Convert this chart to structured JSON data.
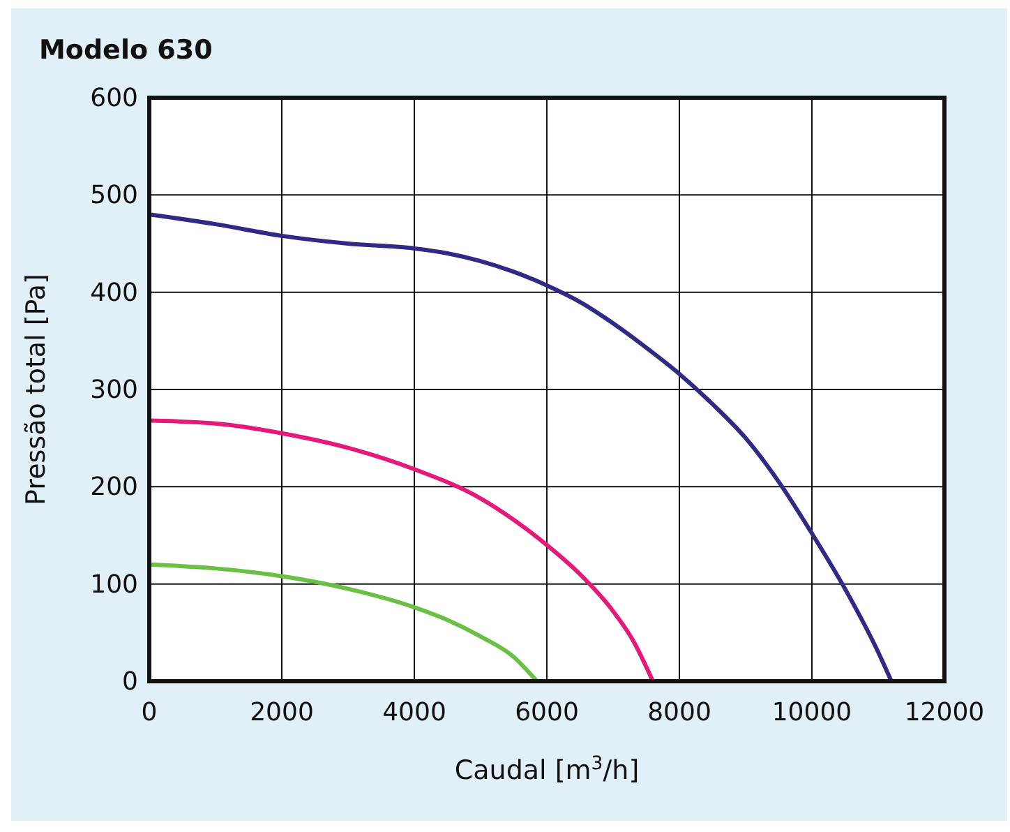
{
  "chart_data": {
    "type": "line",
    "title": "Modelo 630",
    "xlabel": "Caudal [m$^{3}$/h]",
    "ylabel": "Pressão total [Pa]",
    "xlim": [
      0,
      12000
    ],
    "ylim": [
      0,
      600
    ],
    "xticks": [
      0,
      2000,
      4000,
      6000,
      8000,
      10000,
      12000
    ],
    "yticks": [
      0,
      100,
      200,
      300,
      400,
      500,
      600
    ],
    "grid": true,
    "series": [
      {
        "color": "#2e2a86",
        "x": [
          0,
          1000,
          2000,
          3000,
          4000,
          4500,
          5000,
          5500,
          6000,
          6500,
          7000,
          7500,
          8000,
          8500,
          9000,
          9500,
          10000,
          10500,
          11000,
          11200
        ],
        "values": [
          480,
          470,
          458,
          450,
          445,
          440,
          432,
          421,
          407,
          390,
          368,
          343,
          316,
          285,
          250,
          205,
          152,
          95,
          30,
          0
        ]
      },
      {
        "color": "#e5197a",
        "x": [
          0,
          1000,
          2000,
          3000,
          4000,
          5000,
          5500,
          6000,
          6500,
          7000,
          7300,
          7600
        ],
        "values": [
          268,
          265,
          255,
          240,
          218,
          188,
          166,
          140,
          110,
          72,
          42,
          0
        ]
      },
      {
        "color": "#6abf45",
        "x": [
          0,
          1000,
          2000,
          3000,
          4000,
          4500,
          5000,
          5500,
          5850
        ],
        "values": [
          120,
          116,
          108,
          95,
          76,
          63,
          46,
          25,
          0
        ]
      }
    ]
  }
}
